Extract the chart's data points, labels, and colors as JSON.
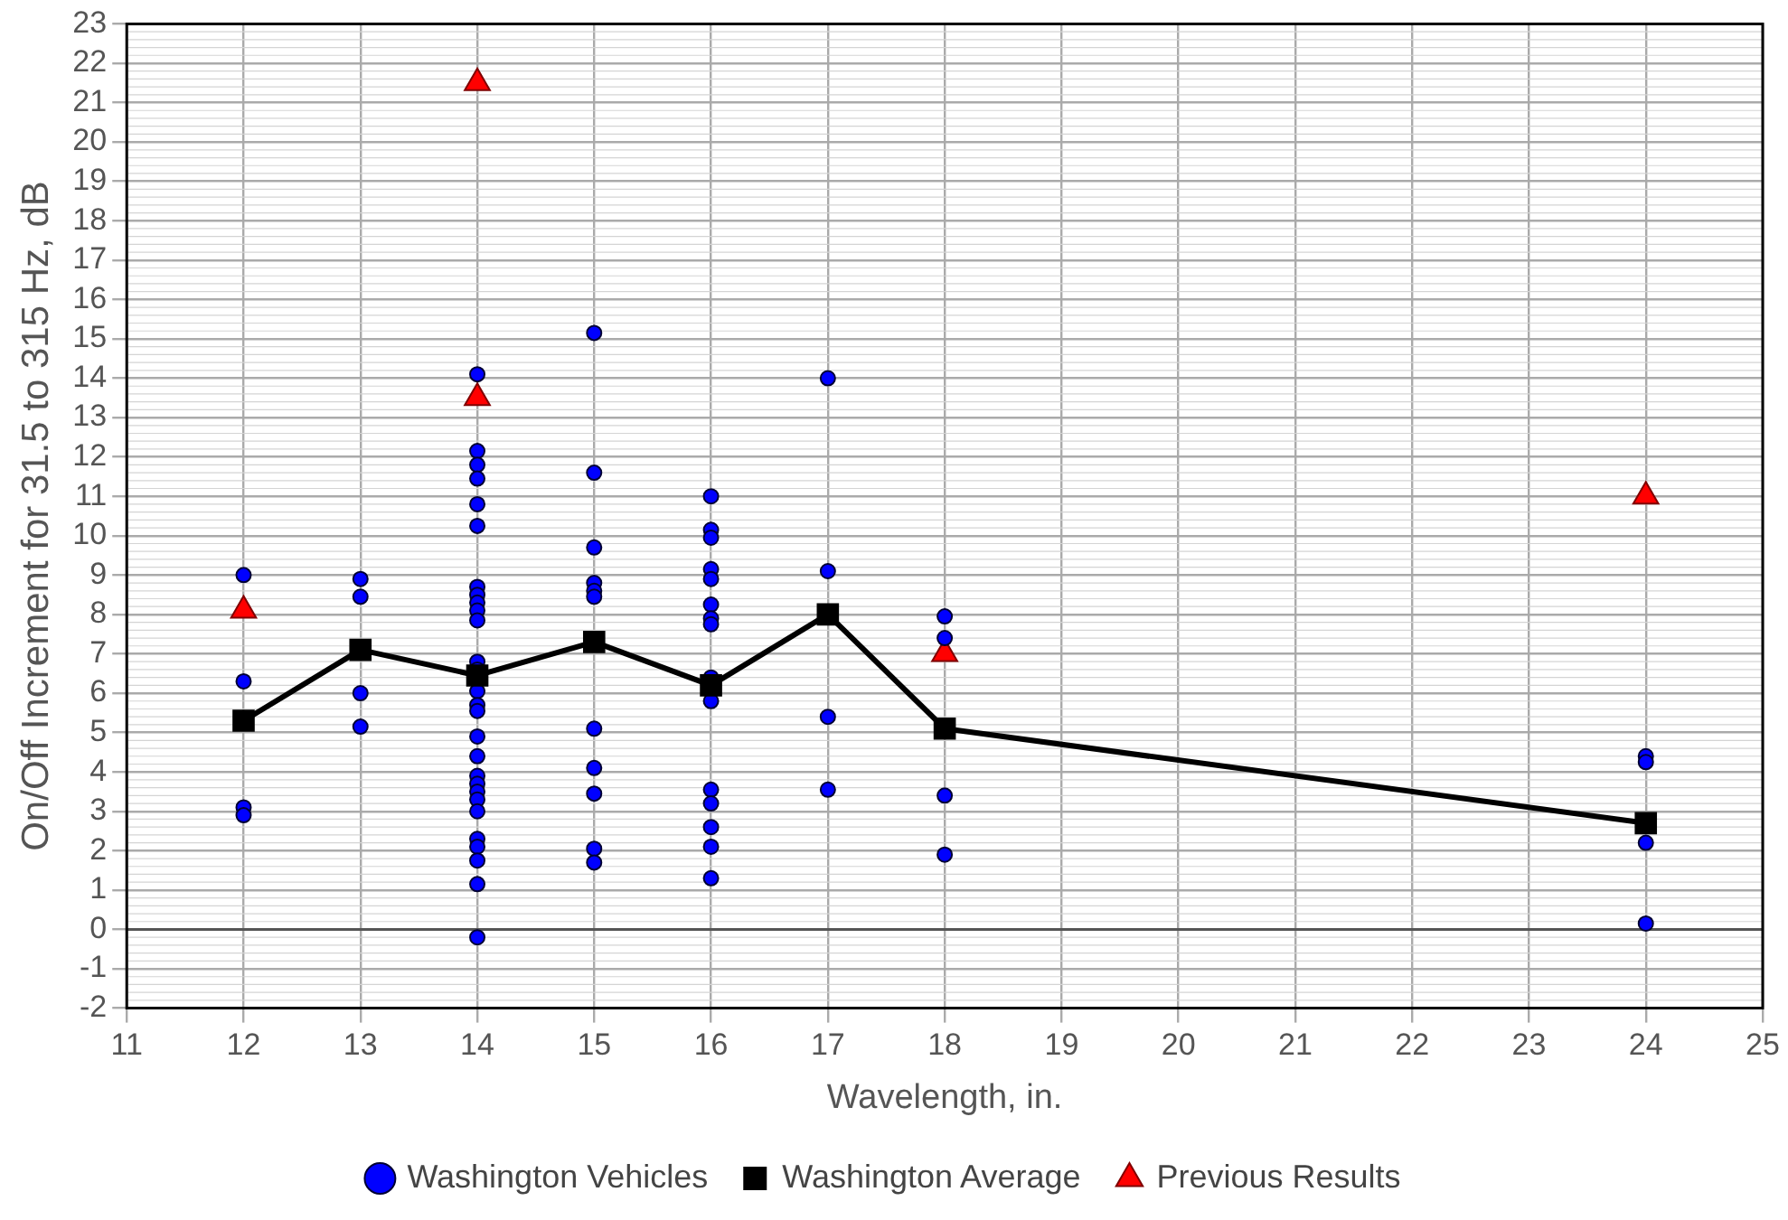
{
  "chart_data": {
    "type": "scatter",
    "xlabel": "Wavelength, in.",
    "ylabel": "On/Off Increment for 31.5 to 315 Hz, dB",
    "xlim": [
      11,
      25
    ],
    "xticks": [
      11,
      12,
      13,
      14,
      15,
      16,
      17,
      18,
      19,
      20,
      21,
      22,
      23,
      24,
      25
    ],
    "ylim": [
      -2,
      23
    ],
    "yticks": [
      -2,
      -1,
      0,
      1,
      2,
      3,
      4,
      5,
      6,
      7,
      8,
      9,
      10,
      11,
      12,
      13,
      14,
      15,
      16,
      17,
      18,
      19,
      20,
      21,
      22,
      23
    ],
    "grid": true,
    "legend": "bottom",
    "ref_lines": [
      {
        "axis": "y",
        "value": 0,
        "color": "#555555"
      }
    ],
    "series": [
      {
        "name": "Washington Vehicles",
        "marker": "circle",
        "color": "#0000ff",
        "x": [
          12,
          12,
          12,
          12,
          13,
          13,
          13,
          13,
          14,
          14,
          14,
          14,
          14,
          14,
          14,
          14,
          14,
          14,
          14,
          14,
          14,
          14,
          14,
          14,
          14,
          14,
          14,
          14,
          14,
          14,
          14,
          14,
          14,
          14,
          14,
          14,
          15,
          15,
          15,
          15,
          15,
          15,
          15,
          15,
          15,
          15,
          15,
          16,
          16,
          16,
          16,
          16,
          16,
          16,
          16,
          16,
          16,
          16,
          16,
          16,
          16,
          16,
          17,
          17,
          17,
          17,
          18,
          18,
          18,
          18,
          24,
          24,
          24,
          24
        ],
        "values": [
          9.0,
          6.3,
          3.1,
          2.9,
          8.9,
          8.45,
          6.0,
          5.15,
          14.1,
          12.15,
          11.8,
          11.45,
          10.8,
          10.25,
          8.7,
          8.5,
          8.3,
          8.1,
          7.85,
          6.8,
          6.6,
          6.05,
          5.7,
          5.55,
          4.9,
          4.4,
          3.9,
          3.7,
          3.5,
          3.3,
          3.0,
          2.3,
          2.1,
          1.75,
          1.15,
          -0.2,
          15.15,
          11.6,
          9.7,
          8.8,
          8.6,
          8.45,
          5.1,
          4.1,
          3.45,
          2.05,
          1.7,
          11.0,
          10.15,
          9.95,
          9.15,
          8.9,
          8.25,
          7.9,
          7.75,
          6.4,
          5.8,
          3.55,
          3.2,
          2.6,
          2.1,
          1.3,
          14.0,
          9.1,
          5.4,
          3.55,
          7.95,
          7.4,
          3.4,
          1.9,
          4.4,
          4.25,
          2.2,
          0.15
        ]
      },
      {
        "name": "Washington Average",
        "type": "line",
        "marker": "square",
        "color": "#000000",
        "x": [
          12,
          13,
          14,
          15,
          16,
          17,
          18,
          24
        ],
        "values": [
          5.3,
          7.1,
          6.45,
          7.3,
          6.2,
          8.0,
          5.1,
          2.7
        ]
      },
      {
        "name": "Previous Results",
        "marker": "triangle",
        "color": "#ff0000",
        "x": [
          12,
          14,
          14,
          18,
          24
        ],
        "values": [
          8.1,
          21.5,
          13.5,
          7.0,
          11.0
        ]
      }
    ]
  }
}
